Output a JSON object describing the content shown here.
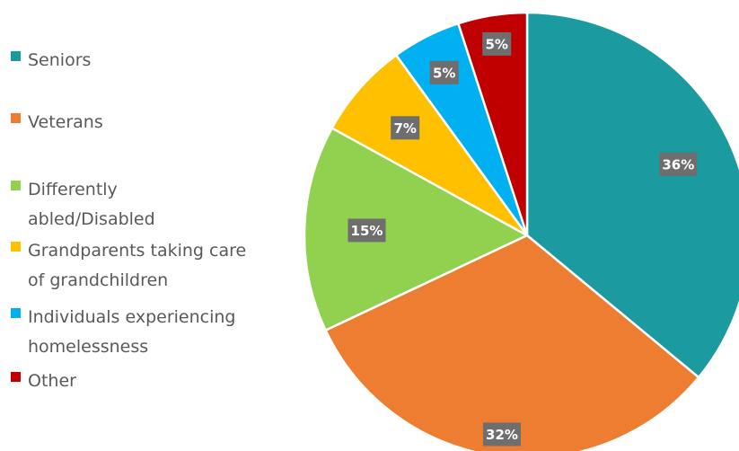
{
  "chart_data": {
    "type": "pie",
    "title": "",
    "legend_position": "left",
    "start_angle_deg": 0,
    "direction": "clockwise",
    "slices": [
      {
        "name": "Seniors",
        "value": 36,
        "label": "36%",
        "color": "#1b9aa0"
      },
      {
        "name": "Veterans",
        "value": 32,
        "label": "32%",
        "color": "#ed7d31"
      },
      {
        "name": "Differently abled/Disabled",
        "value": 15,
        "label": "15%",
        "color": "#92d050"
      },
      {
        "name": "Grandparents taking care of grandchildren",
        "value": 7,
        "label": "7%",
        "color": "#ffc000"
      },
      {
        "name": "Individuals experiencing homelessness",
        "value": 5,
        "label": "5%",
        "color": "#00b0f0"
      },
      {
        "name": "Other",
        "value": 5,
        "label": "5%",
        "color": "#c00000"
      }
    ]
  }
}
